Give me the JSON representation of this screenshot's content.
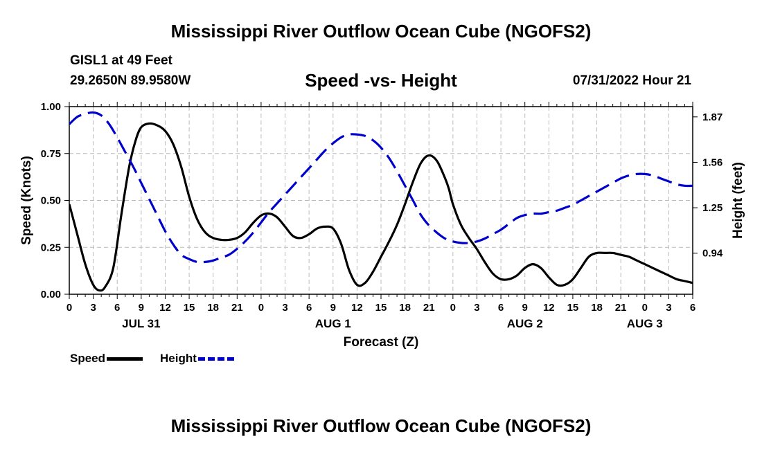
{
  "title": "Mississippi River Outflow Ocean Cube (NGOFS2)",
  "station": "GISL1 at 49 Feet",
  "coordinates": "29.2650N  89.9580W",
  "subtitle": "Speed -vs- Height",
  "datetime": "07/31/2022 Hour 21",
  "footer_title": "Mississippi River Outflow Ocean Cube (NGOFS2)",
  "legend": {
    "speed": "Speed",
    "height": "Height"
  },
  "colors": {
    "speed": "#000000",
    "height": "#0000cc",
    "grid": "#bbbbbb"
  },
  "chart_data": {
    "type": "line",
    "xlabel": "Forecast (Z)",
    "ylabel": "Speed (Knots)",
    "y2label": "Height (feet)",
    "x_unit": "forecast hours from JUL 31 00Z",
    "xlim": [
      0,
      78
    ],
    "ylim": [
      0,
      1
    ],
    "y2lim": [
      0.66,
      1.94
    ],
    "yticks": [
      {
        "value": 0,
        "label": "0.00"
      },
      {
        "value": 0.25,
        "label": "0.25"
      },
      {
        "value": 0.5,
        "label": "0.50"
      },
      {
        "value": 0.75,
        "label": "0.75"
      },
      {
        "value": 1,
        "label": "1.00"
      }
    ],
    "y2ticks": [
      {
        "value": 0.94,
        "label": "0.94"
      },
      {
        "value": 1.25,
        "label": "1.25"
      },
      {
        "value": 1.56,
        "label": "1.56"
      },
      {
        "value": 1.87,
        "label": "1.87"
      }
    ],
    "xtick_labels": [
      "0",
      "3",
      "6",
      "9",
      "12",
      "15",
      "18",
      "21",
      "0",
      "3",
      "6",
      "9",
      "12",
      "15",
      "18",
      "21",
      "0",
      "3",
      "6",
      "9",
      "12",
      "15",
      "18",
      "21",
      "0",
      "3",
      "6"
    ],
    "date_labels": [
      {
        "hour": 9,
        "label": "JUL 31"
      },
      {
        "hour": 33,
        "label": "AUG 1"
      },
      {
        "hour": 57,
        "label": "AUG 2"
      },
      {
        "hour": 72,
        "label": "AUG 3"
      }
    ],
    "grid": true,
    "series": [
      {
        "name": "Speed",
        "axis": "left",
        "style": "solid",
        "x": [
          0,
          1,
          2,
          3,
          3.8,
          4.5,
          5.5,
          6.5,
          7.5,
          8.3,
          9,
          10,
          11,
          12,
          13,
          14,
          15,
          16,
          17,
          18,
          19,
          20,
          21,
          22,
          23,
          24,
          25,
          26,
          27,
          28,
          29,
          30,
          31,
          32,
          33,
          34,
          35,
          36,
          37,
          38,
          39,
          40,
          41,
          42,
          43,
          44,
          45,
          46,
          47,
          47.5,
          48,
          49,
          50,
          51,
          52,
          53,
          54,
          55,
          56,
          57,
          58,
          59,
          60,
          61,
          62,
          63,
          64,
          65,
          66,
          67,
          68,
          69,
          70,
          71,
          72,
          73,
          74,
          75,
          76,
          77,
          78
        ],
        "y": [
          0.48,
          0.32,
          0.16,
          0.05,
          0.02,
          0.04,
          0.14,
          0.42,
          0.68,
          0.82,
          0.89,
          0.91,
          0.9,
          0.87,
          0.8,
          0.68,
          0.52,
          0.4,
          0.33,
          0.3,
          0.29,
          0.29,
          0.3,
          0.33,
          0.38,
          0.42,
          0.43,
          0.41,
          0.36,
          0.31,
          0.3,
          0.32,
          0.35,
          0.36,
          0.35,
          0.27,
          0.13,
          0.05,
          0.06,
          0.12,
          0.2,
          0.28,
          0.37,
          0.48,
          0.6,
          0.7,
          0.74,
          0.71,
          0.62,
          0.56,
          0.48,
          0.37,
          0.3,
          0.24,
          0.17,
          0.11,
          0.08,
          0.08,
          0.1,
          0.14,
          0.16,
          0.14,
          0.09,
          0.05,
          0.05,
          0.08,
          0.14,
          0.2,
          0.22,
          0.22,
          0.22,
          0.21,
          0.2,
          0.18,
          0.16,
          0.14,
          0.12,
          0.1,
          0.08,
          0.07,
          0.06
        ]
      },
      {
        "name": "Height",
        "axis": "right",
        "style": "dashed",
        "x": [
          0,
          1,
          2,
          3,
          4,
          5,
          6,
          7,
          8,
          9,
          10,
          11,
          12,
          13,
          14,
          15,
          16,
          17,
          18,
          19,
          20,
          21,
          22,
          23,
          24,
          25,
          26,
          27,
          28,
          29,
          30,
          31,
          32,
          33,
          34,
          35,
          36,
          37,
          38,
          39,
          40,
          41,
          42,
          43,
          44,
          45,
          46,
          47,
          48,
          49,
          50,
          51,
          52,
          53,
          54,
          55,
          56,
          57,
          58,
          59,
          60,
          61,
          62,
          63,
          64,
          65,
          66,
          67,
          68,
          69,
          70,
          71,
          72,
          73,
          74,
          75,
          76,
          77,
          78
        ],
        "y": [
          1.82,
          1.87,
          1.89,
          1.9,
          1.88,
          1.82,
          1.73,
          1.63,
          1.53,
          1.42,
          1.31,
          1.2,
          1.09,
          1.0,
          0.93,
          0.9,
          0.88,
          0.88,
          0.89,
          0.91,
          0.93,
          0.97,
          1.02,
          1.08,
          1.15,
          1.22,
          1.28,
          1.34,
          1.4,
          1.46,
          1.52,
          1.58,
          1.64,
          1.69,
          1.73,
          1.75,
          1.75,
          1.74,
          1.71,
          1.66,
          1.59,
          1.5,
          1.4,
          1.3,
          1.2,
          1.13,
          1.08,
          1.04,
          1.02,
          1.01,
          1.01,
          1.02,
          1.04,
          1.07,
          1.1,
          1.14,
          1.18,
          1.2,
          1.21,
          1.21,
          1.22,
          1.23,
          1.25,
          1.27,
          1.3,
          1.33,
          1.36,
          1.39,
          1.42,
          1.45,
          1.47,
          1.48,
          1.48,
          1.47,
          1.45,
          1.43,
          1.41,
          1.4,
          1.4
        ]
      }
    ]
  }
}
